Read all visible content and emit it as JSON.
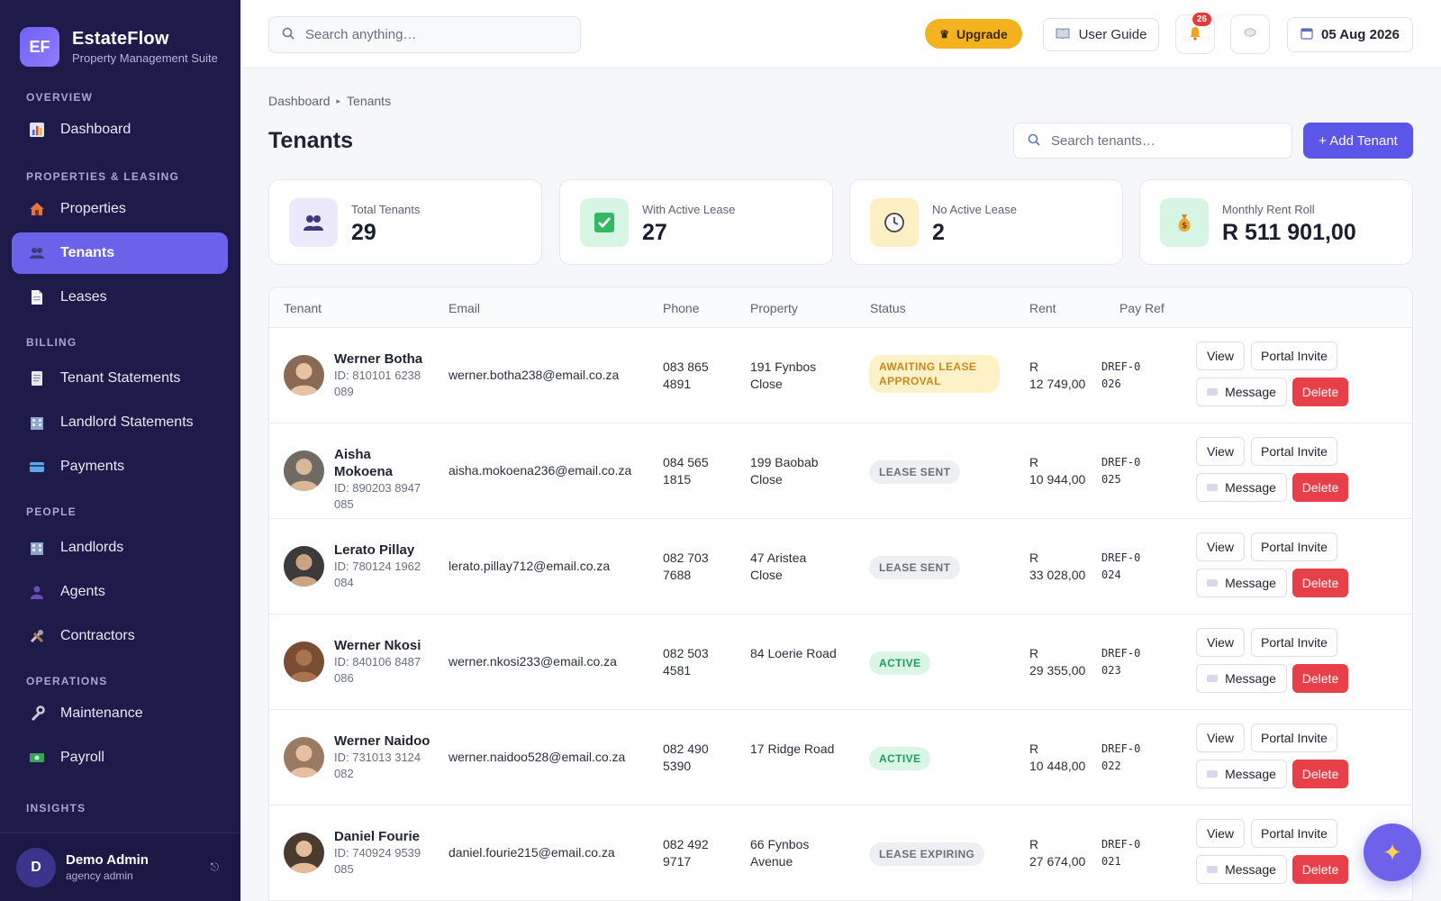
{
  "brand": {
    "logo": "EF",
    "name": "EstateFlow",
    "subtitle": "Property Management Suite"
  },
  "sidebar": {
    "sections": [
      {
        "title": "OVERVIEW"
      },
      {
        "title": "PROPERTIES & LEASING"
      },
      {
        "title": "BILLING"
      },
      {
        "title": "PEOPLE"
      },
      {
        "title": "OPERATIONS"
      },
      {
        "title": "INSIGHTS"
      }
    ],
    "items": [
      {
        "label": "Dashboard",
        "icon": "chart-icon"
      },
      {
        "label": "Properties",
        "icon": "house-icon"
      },
      {
        "label": "Tenants",
        "icon": "people-icon",
        "active": true
      },
      {
        "label": "Leases",
        "icon": "document-icon"
      },
      {
        "label": "Tenant Statements",
        "icon": "receipt-icon"
      },
      {
        "label": "Landlord Statements",
        "icon": "building-icon"
      },
      {
        "label": "Payments",
        "icon": "credit-card-icon"
      },
      {
        "label": "Landlords",
        "icon": "building-icon"
      },
      {
        "label": "Agents",
        "icon": "person-icon"
      },
      {
        "label": "Contractors",
        "icon": "tools-icon"
      },
      {
        "label": "Maintenance",
        "icon": "wrench-icon"
      },
      {
        "label": "Payroll",
        "icon": "money-icon"
      }
    ],
    "user": {
      "initial": "D",
      "name": "Demo Admin",
      "role": "agency admin"
    }
  },
  "topbar": {
    "search_placeholder": "Search anything…",
    "upgrade_label": "Upgrade",
    "guide_label": "User Guide",
    "notification_count": "26",
    "date": "05 Aug 2026"
  },
  "breadcrumb": {
    "root": "Dashboard",
    "current": "Tenants"
  },
  "page": {
    "title": "Tenants",
    "search_placeholder": "Search tenants…",
    "add_label": "+ Add Tenant"
  },
  "stats": [
    {
      "label": "Total Tenants",
      "value": "29",
      "icon": "people-icon",
      "bg": "#ece9fc"
    },
    {
      "label": "With Active Lease",
      "value": "27",
      "icon": "check-icon",
      "bg": "#d6f5e3"
    },
    {
      "label": "No Active Lease",
      "value": "2",
      "icon": "clock-icon",
      "bg": "#fdf0c4"
    },
    {
      "label": "Monthly Rent Roll",
      "value": "R 511 901,00",
      "icon": "money-bag-icon",
      "bg": "#d6f5e3"
    }
  ],
  "table": {
    "headers": [
      "Tenant",
      "Email",
      "Phone",
      "Property",
      "Status",
      "Rent",
      "Pay Ref"
    ],
    "actions": {
      "view": "View",
      "portal": "Portal Invite",
      "message": "Message",
      "delete": "Delete"
    },
    "rows": [
      {
        "name": "Werner Botha",
        "id": "ID: 810101 6238 089",
        "email": "werner.botha238@email.co.za",
        "phone": "083 865 4891",
        "property": "191 Fynbos Close",
        "status": "AWAITING LEASE APPROVAL",
        "status_class": "st-awaiting",
        "rent_prefix": "R",
        "rent": "12 749,00",
        "payref": "DREF-0026",
        "avatar_color": "#8a6a55"
      },
      {
        "name": "Aisha Mokoena",
        "id": "ID: 890203 8947 085",
        "email": "aisha.mokoena236@email.co.za",
        "phone": "084 565 1815",
        "property": "199 Baobab Close",
        "status": "LEASE SENT",
        "status_class": "st-sent",
        "rent_prefix": "R",
        "rent": "10 944,00",
        "payref": "DREF-0025",
        "avatar_color": "#6f6a64"
      },
      {
        "name": "Lerato Pillay",
        "id": "ID: 780124 1962 084",
        "email": "lerato.pillay712@email.co.za",
        "phone": "082 703 7688",
        "property": "47 Aristea Close",
        "status": "LEASE SENT",
        "status_class": "st-sent",
        "rent_prefix": "R",
        "rent": "33 028,00",
        "payref": "DREF-0024",
        "avatar_color": "#3d3b3a"
      },
      {
        "name": "Werner Nkosi",
        "id": "ID: 840106 8487 086",
        "email": "werner.nkosi233@email.co.za",
        "phone": "082 503 4581",
        "property": "84 Loerie Road",
        "status": "ACTIVE",
        "status_class": "st-active",
        "rent_prefix": "R",
        "rent": "29 355,00",
        "payref": "DREF-0023",
        "avatar_color": "#7a4d33"
      },
      {
        "name": "Werner Naidoo",
        "id": "ID: 731013 3124 082",
        "email": "werner.naidoo528@email.co.za",
        "phone": "082 490 5390",
        "property": "17 Ridge Road",
        "status": "ACTIVE",
        "status_class": "st-active",
        "rent_prefix": "R",
        "rent": "10 448,00",
        "payref": "DREF-0022",
        "avatar_color": "#9a7a62"
      },
      {
        "name": "Daniel Fourie",
        "id": "ID: 740924 9539 085",
        "email": "daniel.fourie215@email.co.za",
        "phone": "082 492 9717",
        "property": "66 Fynbos Avenue",
        "status": "LEASE EXPIRING",
        "status_class": "st-expiring",
        "rent_prefix": "R",
        "rent": "27 674,00",
        "payref": "DREF-0021",
        "avatar_color": "#4a3a30"
      }
    ]
  }
}
